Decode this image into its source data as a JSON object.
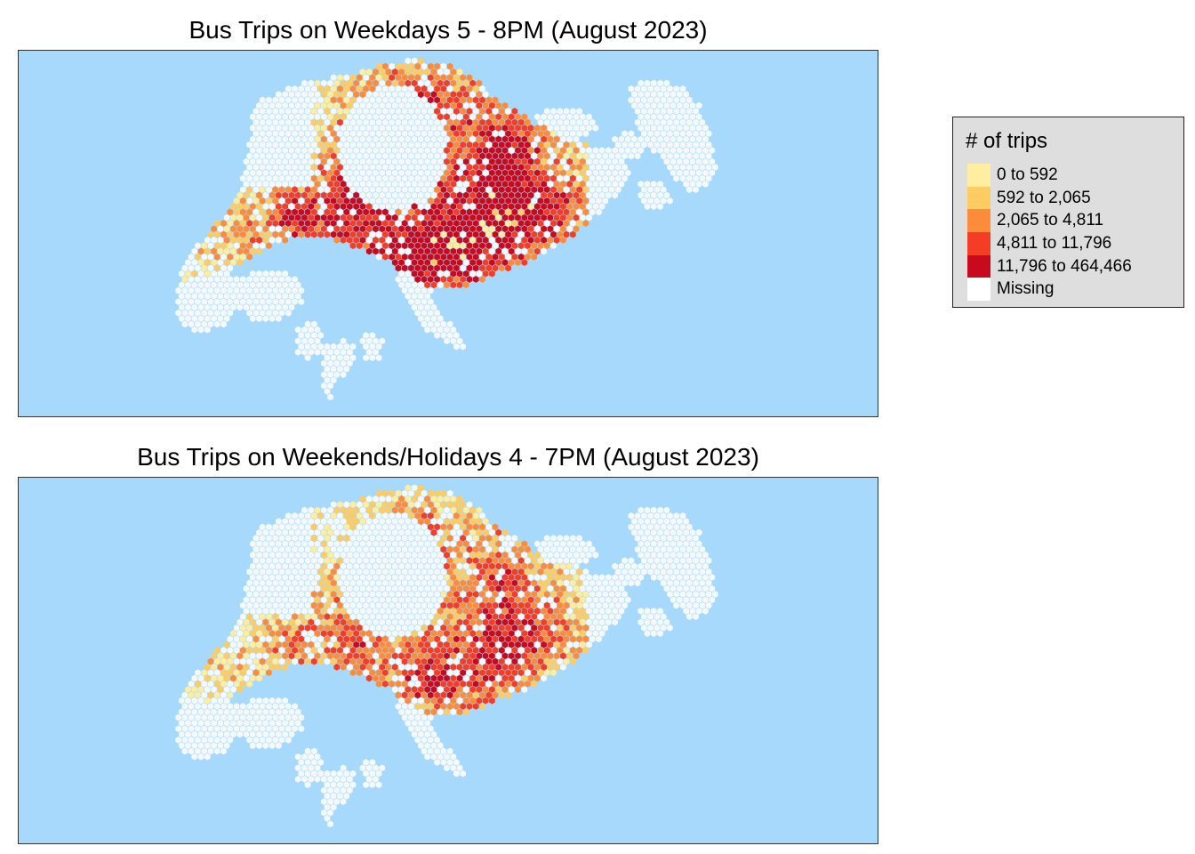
{
  "maps": [
    {
      "title": "Bus Trips on Weekdays 5 - 8PM (August 2023)",
      "intensity": "high"
    },
    {
      "title": "Bus Trips on Weekends/Holidays 4 - 7PM (August 2023)",
      "intensity": "medium"
    }
  ],
  "legend": {
    "title": "# of trips",
    "items": [
      {
        "label": "0 to 592",
        "color": "#ffeda0"
      },
      {
        "label": "592 to 2,065",
        "color": "#fecc63"
      },
      {
        "label": "2,065 to 4,811",
        "color": "#fd8b3c"
      },
      {
        "label": "4,811 to 11,796",
        "color": "#f53c24"
      },
      {
        "label": "11,796 to 464,466",
        "color": "#c90a1e"
      },
      {
        "label": "Missing",
        "color": "#ffffff"
      }
    ]
  },
  "colors": {
    "sea": "#a6d9fb",
    "land_empty": "#f3f9fd"
  }
}
